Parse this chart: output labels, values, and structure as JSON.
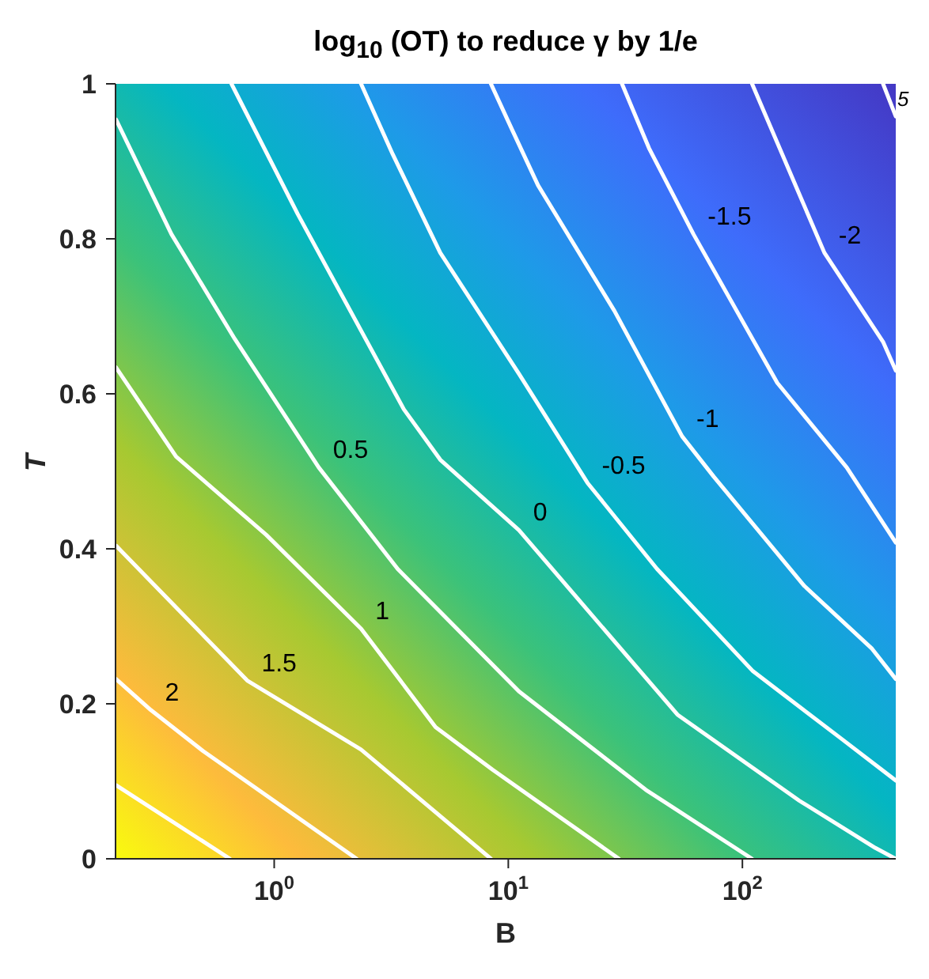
{
  "chart_data": {
    "type": "line",
    "title": "log$_{10}$ (OT) to reduce γ by 1/e",
    "xlabel": "B",
    "ylabel": "T",
    "log": "x",
    "xlim": [
      0.21,
      452
    ],
    "ylim": [
      0,
      1
    ],
    "xticks": [
      {
        "value": 1,
        "label": "10$^{0}$"
      },
      {
        "value": 10,
        "label": "10$^{1}$"
      },
      {
        "value": 100,
        "label": "10$^{2}$"
      }
    ],
    "yticks": [
      0,
      0.2,
      0.4,
      0.6,
      0.8,
      1
    ],
    "grid": false,
    "legend": false,
    "marker": "none",
    "line_style": "solid",
    "annotations": [
      "5"
    ],
    "series": [
      {
        "name": null,
        "color": "#ffffff",
        "x": [
          0.211,
          0.647
        ],
        "values": [
          0.095,
          0
        ]
      },
      {
        "name": "2",
        "color": "#ffffff",
        "x": [
          0.211,
          0.297,
          0.497,
          2.25
        ],
        "values": [
          0.232,
          0.192,
          0.139,
          0
        ]
      },
      {
        "name": "1.5",
        "color": "#ffffff",
        "x": [
          0.211,
          0.347,
          0.767,
          2.35,
          8.43
        ],
        "values": [
          0.404,
          0.337,
          0.23,
          0.141,
          0
        ]
      },
      {
        "name": "1",
        "color": "#ffffff",
        "x": [
          0.211,
          0.381,
          0.925,
          2.35,
          4.89,
          8.56,
          29.7
        ],
        "values": [
          0.634,
          0.519,
          0.418,
          0.297,
          0.17,
          0.115,
          0
        ]
      },
      {
        "name": "0.5",
        "color": "#ffffff",
        "x": [
          0.211,
          0.364,
          0.678,
          1.55,
          3.37,
          11.1,
          38.7,
          110
        ],
        "values": [
          0.954,
          0.806,
          0.671,
          0.505,
          0.374,
          0.216,
          0.089,
          0
        ]
      },
      {
        "name": "0",
        "color": "#ffffff",
        "x": [
          0.657,
          1.26,
          3.58,
          5.12,
          11.1,
          52.8,
          175,
          370,
          452
        ],
        "values": [
          1,
          0.832,
          0.58,
          0.515,
          0.424,
          0.186,
          0.075,
          0.014,
          0
        ]
      },
      {
        "name": "-0.5",
        "color": "#ffffff",
        "x": [
          2.35,
          3.21,
          5.12,
          11.1,
          21.8,
          43.2,
          111,
          262,
          452
        ],
        "values": [
          1,
          0.909,
          0.782,
          0.626,
          0.485,
          0.374,
          0.242,
          0.156,
          0.101
        ]
      },
      {
        "name": "-1",
        "color": "#ffffff",
        "x": [
          8.43,
          10.3,
          13.4,
          28.4,
          55.3,
          75.5,
          184,
          358,
          452
        ],
        "values": [
          1,
          0.943,
          0.869,
          0.707,
          0.545,
          0.493,
          0.352,
          0.271,
          0.232
        ]
      },
      {
        "name": "-1.5",
        "color": "#ffffff",
        "x": [
          30.6,
          39.9,
          61.8,
          141,
          279,
          452
        ],
        "values": [
          1,
          0.917,
          0.806,
          0.614,
          0.505,
          0.408
        ]
      },
      {
        "name": "-2",
        "color": "#ffffff",
        "x": [
          110,
          224,
          399,
          452
        ],
        "values": [
          1,
          0.782,
          0.667,
          0.63
        ]
      },
      {
        "name": null,
        "color": "#ffffff",
        "x": [
          399,
          452
        ],
        "values": [
          1,
          0.958
        ]
      }
    ]
  }
}
